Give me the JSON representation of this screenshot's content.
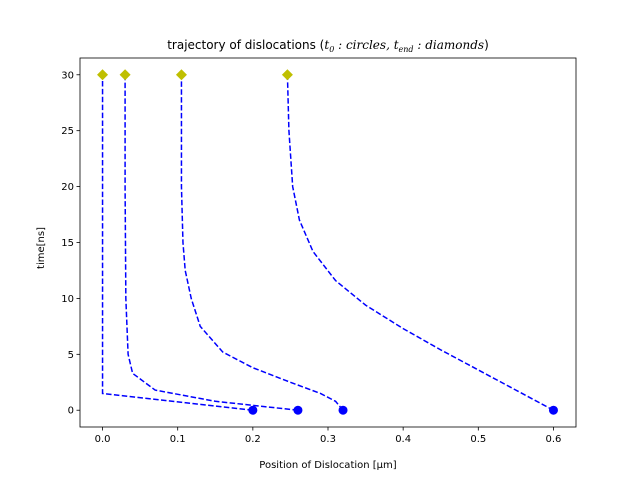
{
  "chart_data": {
    "type": "line",
    "title": {
      "prefix": "trajectory of dislocations (",
      "t0": "t",
      "t0_sub": "0",
      "start_label": "circles",
      "tend": "t",
      "tend_sub": "end",
      "end_label": "diamonds",
      "suffix": ")"
    },
    "xlabel": "Position of Dislocation [μm]",
    "ylabel": "time[ns]",
    "xlim": [
      -0.03,
      0.63
    ],
    "ylim": [
      -1.5,
      31.5
    ],
    "xticks": [
      0.0,
      0.1,
      0.2,
      0.3,
      0.4,
      0.5,
      0.6
    ],
    "xtick_labels": [
      "0.0",
      "0.1",
      "0.2",
      "0.3",
      "0.4",
      "0.5",
      "0.6"
    ],
    "yticks": [
      0,
      5,
      10,
      15,
      20,
      25,
      30
    ],
    "ytick_labels": [
      "0",
      "5",
      "10",
      "15",
      "20",
      "25",
      "30"
    ],
    "grid": false,
    "colors": {
      "trajectory": "#0000ff",
      "start_marker": "#0000ff",
      "end_marker": "#bfbf00"
    },
    "line_style": "dashed",
    "start_marker": "circle",
    "end_marker": "diamond",
    "series": [
      {
        "points": [
          [
            0.2,
            0
          ],
          [
            0.0,
            1.5
          ],
          [
            0.0,
            5
          ],
          [
            0.0,
            10
          ],
          [
            0.0,
            20
          ],
          [
            0.0,
            30
          ]
        ]
      },
      {
        "points": [
          [
            0.26,
            0
          ],
          [
            0.15,
            0.8
          ],
          [
            0.07,
            1.8
          ],
          [
            0.04,
            3.3
          ],
          [
            0.034,
            5
          ],
          [
            0.031,
            10
          ],
          [
            0.03,
            20
          ],
          [
            0.03,
            30
          ]
        ]
      },
      {
        "points": [
          [
            0.32,
            0
          ],
          [
            0.31,
            0.8
          ],
          [
            0.29,
            1.5
          ],
          [
            0.25,
            2.5
          ],
          [
            0.2,
            3.8
          ],
          [
            0.16,
            5.2
          ],
          [
            0.13,
            7.5
          ],
          [
            0.118,
            10
          ],
          [
            0.11,
            12.5
          ],
          [
            0.107,
            15
          ],
          [
            0.105,
            20
          ],
          [
            0.105,
            30
          ]
        ]
      },
      {
        "points": [
          [
            0.6,
            0
          ],
          [
            0.55,
            1.8
          ],
          [
            0.5,
            3.6
          ],
          [
            0.45,
            5.4
          ],
          [
            0.4,
            7.3
          ],
          [
            0.35,
            9.4
          ],
          [
            0.31,
            11.6
          ],
          [
            0.28,
            14.2
          ],
          [
            0.262,
            17
          ],
          [
            0.253,
            20
          ],
          [
            0.248,
            25
          ],
          [
            0.246,
            30
          ]
        ]
      }
    ]
  }
}
